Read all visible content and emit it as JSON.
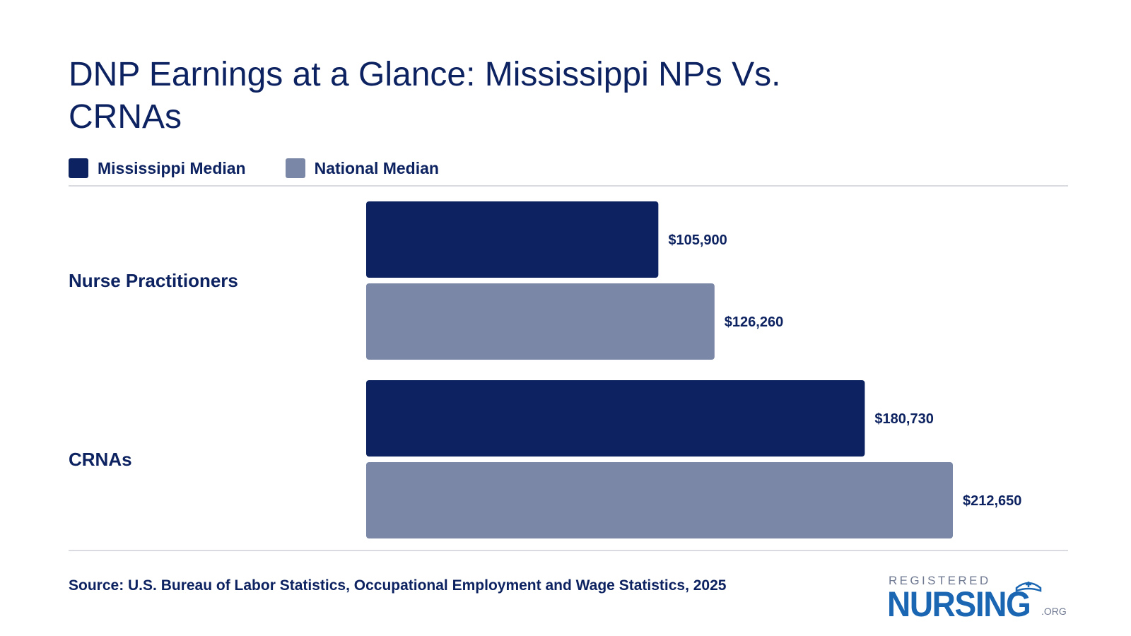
{
  "title": "DNP Earnings at a Glance: Mississippi NPs Vs. CRNAs",
  "legend": [
    {
      "label": "Mississippi Median",
      "color": "#0d2260"
    },
    {
      "label": "National Median",
      "color": "#7b87a6"
    }
  ],
  "chart_data": {
    "type": "bar",
    "orientation": "horizontal",
    "title": "DNP Earnings at a Glance: Mississippi NPs Vs. CRNAs",
    "categories": [
      "Nurse Practitioners",
      "CRNAs"
    ],
    "series": [
      {
        "name": "Mississippi Median",
        "color": "#0d2260",
        "values": [
          105900,
          180730
        ],
        "labels": [
          "$105,900",
          "$180,730"
        ]
      },
      {
        "name": "National Median",
        "color": "#7b87a6",
        "values": [
          126260,
          212650
        ],
        "labels": [
          "$126,260",
          "$212,650"
        ]
      }
    ],
    "xlim": [
      0,
      212650
    ],
    "grid": false,
    "legend_position": "top-left"
  },
  "source": "Source: U.S. Bureau of Labor Statistics, Occupational Employment and Wage Statistics, 2025",
  "logo": {
    "top": "REGISTERED",
    "main": "NURSING",
    "suffix": ".ORG",
    "color": "#1a66b3"
  }
}
